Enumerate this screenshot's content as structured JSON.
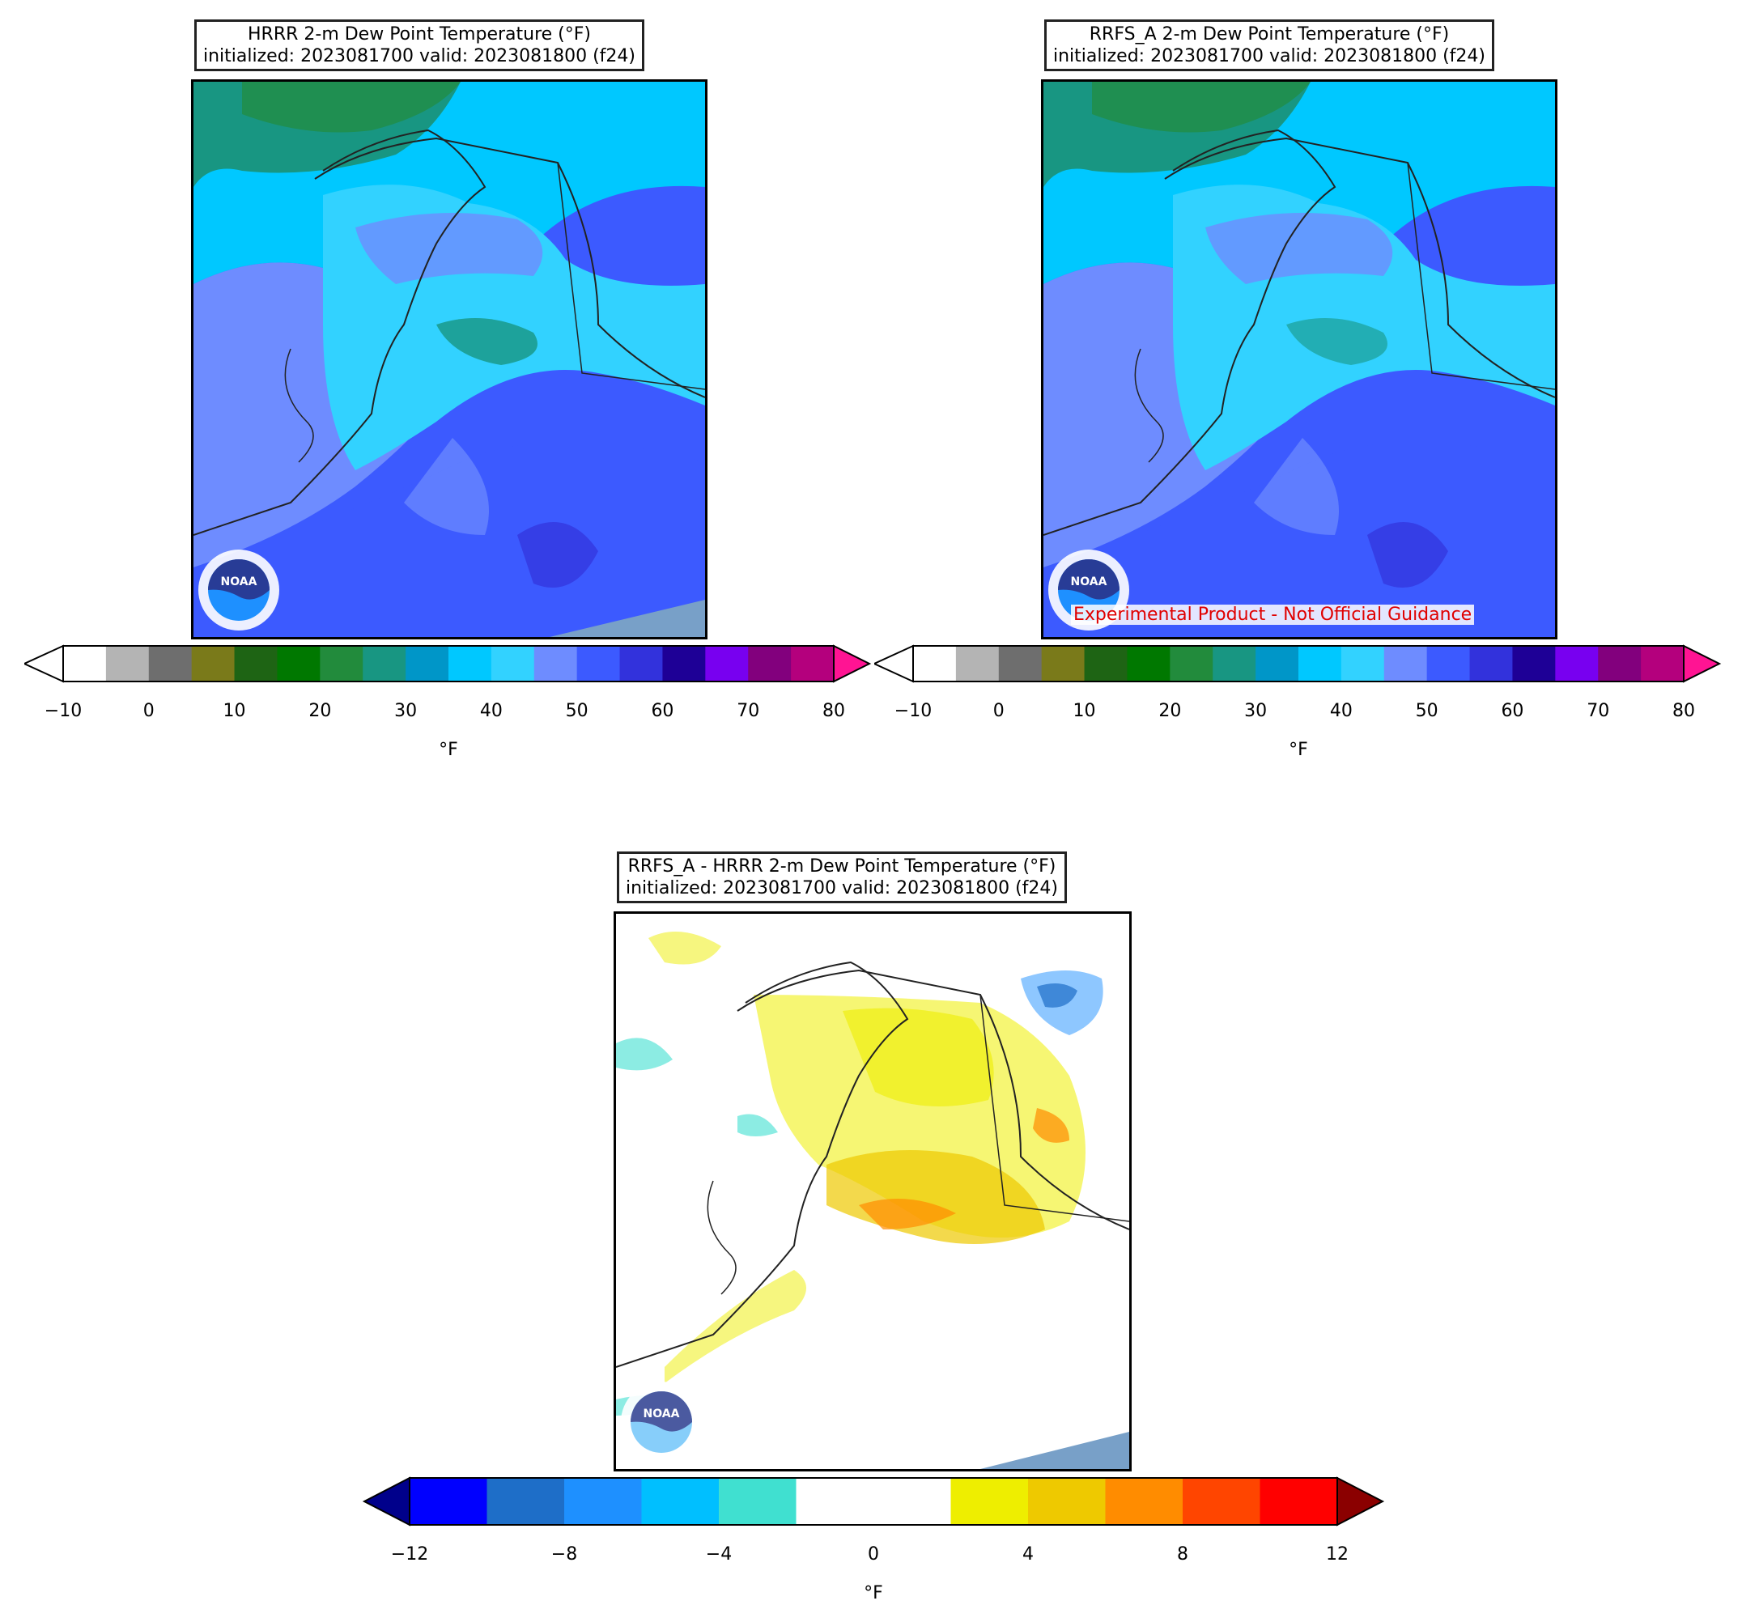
{
  "panels": [
    {
      "id": "hrrr",
      "title_line1": "HRRR 2-m Dew Point Temperature (°F)",
      "title_line2": "initialized: 2023081700 valid: 2023081800 (f24)"
    },
    {
      "id": "rrfs",
      "title_line1": "RRFS_A 2-m Dew Point Temperature (°F)",
      "title_line2": "initialized: 2023081700 valid: 2023081800 (f24)",
      "watermark": "Experimental Product - Not Official Guidance"
    },
    {
      "id": "diff",
      "title_line1": "RRFS_A - HRRR 2-m Dew Point Temperature (°F)",
      "title_line2": "initialized: 2023081700 valid: 2023081800 (f24)"
    }
  ],
  "colorbar_dewpoint": {
    "unit": "°F",
    "ticks": [
      "−10",
      "0",
      "10",
      "20",
      "30",
      "40",
      "50",
      "60",
      "70",
      "80"
    ],
    "under_color": "#ffffff",
    "over_color": "#ff1493",
    "colors": [
      "#ffffff",
      "#b4b4b4",
      "#6e6e6e",
      "#7a7a1a",
      "#1e6414",
      "#007800",
      "#228b3c",
      "#189682",
      "#0096c8",
      "#00c8ff",
      "#32d2ff",
      "#6e8cff",
      "#3c5aff",
      "#3232dc",
      "#1e0096",
      "#7800f0",
      "#82007d",
      "#b4007d"
    ]
  },
  "colorbar_diff": {
    "unit": "°F",
    "ticks": [
      "−12",
      "−8",
      "−4",
      "0",
      "4",
      "8",
      "12"
    ],
    "under_color": "#00008b",
    "over_color": "#8b0000",
    "colors": [
      "#0000ff",
      "#1e6ec8",
      "#1e90ff",
      "#00bfff",
      "#40e0d0",
      "#ffffff",
      "#ffffff",
      "#eeee00",
      "#eec900",
      "#ff8c00",
      "#ff4500",
      "#ff0000"
    ]
  },
  "logo": {
    "text": "NOAA"
  }
}
